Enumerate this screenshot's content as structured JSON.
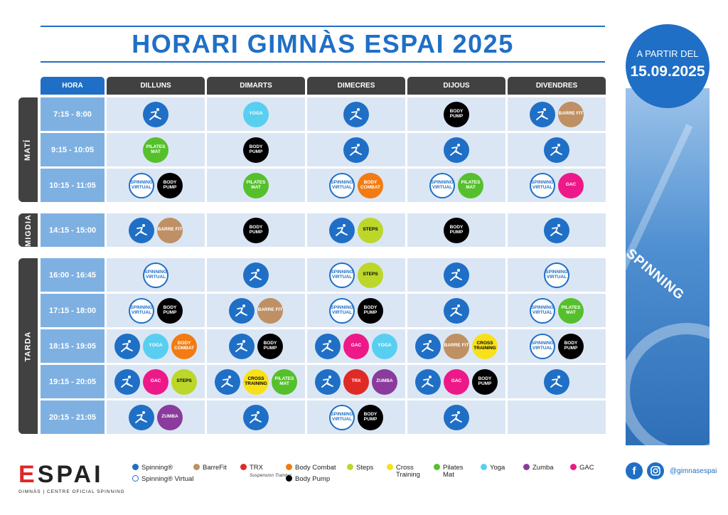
{
  "title": "HORARI GIMNÀS ESPAI 2025",
  "badge": {
    "line1": "A PARTIR DEL",
    "line2": "15.09.2025"
  },
  "photo_text": "SPINNING",
  "headers": [
    "HORA",
    "DILLUNS",
    "DIMARTS",
    "DIMECRES",
    "DIJOUS",
    "DIVENDRES"
  ],
  "sections": [
    {
      "name": "MATÍ",
      "rows": [
        {
          "time": "7:15 - 8:00",
          "cells": [
            [
              "spinning"
            ],
            [
              "yoga"
            ],
            [
              "spinning"
            ],
            [
              "body-pump"
            ],
            [
              "spinning",
              "barrefit"
            ]
          ]
        },
        {
          "time": "9:15 - 10:05",
          "cells": [
            [
              "pilates"
            ],
            [
              "body-pump"
            ],
            [
              "spinning"
            ],
            [
              "spinning"
            ],
            [
              "spinning"
            ]
          ]
        },
        {
          "time": "10:15 - 11:05",
          "cells": [
            [
              "virtual",
              "body-pump"
            ],
            [
              "pilates"
            ],
            [
              "virtual",
              "body-combat"
            ],
            [
              "virtual",
              "pilates"
            ],
            [
              "virtual",
              "gac"
            ]
          ]
        }
      ]
    },
    {
      "name": "MIGDIA",
      "rows": [
        {
          "time": "14:15 - 15:00",
          "cells": [
            [
              "spinning",
              "barrefit"
            ],
            [
              "body-pump"
            ],
            [
              "spinning",
              "steps"
            ],
            [
              "body-pump"
            ],
            [
              "spinning"
            ]
          ]
        }
      ]
    },
    {
      "name": "TARDA",
      "rows": [
        {
          "time": "16:00 - 16:45",
          "cells": [
            [
              "virtual"
            ],
            [
              "spinning"
            ],
            [
              "virtual",
              "steps"
            ],
            [
              "spinning"
            ],
            [
              "virtual"
            ]
          ]
        },
        {
          "time": "17:15 - 18:00",
          "cells": [
            [
              "virtual",
              "body-pump"
            ],
            [
              "spinning",
              "barrefit"
            ],
            [
              "virtual",
              "body-pump"
            ],
            [
              "spinning"
            ],
            [
              "virtual",
              "pilates"
            ]
          ]
        },
        {
          "time": "18:15 - 19:05",
          "cells": [
            [
              "spinning",
              "yoga",
              "body-combat"
            ],
            [
              "spinning",
              "body-pump"
            ],
            [
              "spinning",
              "gac",
              "yoga"
            ],
            [
              "spinning",
              "barrefit",
              "cross"
            ],
            [
              "virtual",
              "body-pump"
            ]
          ]
        },
        {
          "time": "19:15 - 20:05",
          "cells": [
            [
              "spinning",
              "gac",
              "steps"
            ],
            [
              "spinning",
              "cross",
              "pilates"
            ],
            [
              "spinning",
              "trx",
              "zumba"
            ],
            [
              "spinning",
              "gac",
              "body-pump"
            ],
            [
              "spinning"
            ]
          ]
        },
        {
          "time": "20:15 - 21:05",
          "cells": [
            [
              "spinning",
              "zumba"
            ],
            [
              "spinning"
            ],
            [
              "virtual",
              "body-pump"
            ],
            [
              "spinning"
            ],
            []
          ]
        }
      ]
    }
  ],
  "class_labels": {
    "spinning": "",
    "virtual": "SPINNING VIRTUAL",
    "yoga": "YOGA",
    "body-pump": "BODY PUMP",
    "barrefit": "BARRE FIT",
    "pilates": "PILATES MAT",
    "body-combat": "BODY COMBAT",
    "gac": "GAC",
    "steps": "STEPS",
    "cross": "CROSS TRAINING",
    "trx": "TRX",
    "zumba": "ZUMBA"
  },
  "colors": {
    "spinning": "#1f6fc6",
    "yoga": "#58cff0",
    "body-pump": "#000000",
    "barrefit": "#bf9063",
    "pilates": "#55c02c",
    "body-combat": "#f27b12",
    "gac": "#ee1988",
    "steps": "#bcd72a",
    "cross": "#f9e11a",
    "trx": "#e02a25",
    "zumba": "#8a3b9c"
  },
  "legend": [
    {
      "key": "spinning",
      "label": "Spinning®"
    },
    {
      "key": "virtual",
      "label": "Spinning® Virtual"
    },
    {
      "key": "barrefit",
      "label": "BarreFit"
    },
    {
      "key": "trx",
      "label": "TRX",
      "sub": "Suspension Training"
    },
    {
      "key": "body-combat",
      "label": "Body Combat"
    },
    {
      "key": "body-pump",
      "label": "Body Pump"
    },
    {
      "key": "steps",
      "label": "Steps"
    },
    {
      "key": "cross",
      "label": "Cross Training"
    },
    {
      "key": "pilates",
      "label": "Pilates Mat"
    },
    {
      "key": "yoga",
      "label": "Yoga"
    },
    {
      "key": "zumba",
      "label": "Zumba"
    },
    {
      "key": "gac",
      "label": "GAC"
    }
  ],
  "logo": {
    "name": "ESPAI",
    "subtitle": "GIMNÀS | CENTRE OFICIAL SPINNING"
  },
  "social": {
    "facebook_icon": "f",
    "handle": "@gimnasespai"
  }
}
